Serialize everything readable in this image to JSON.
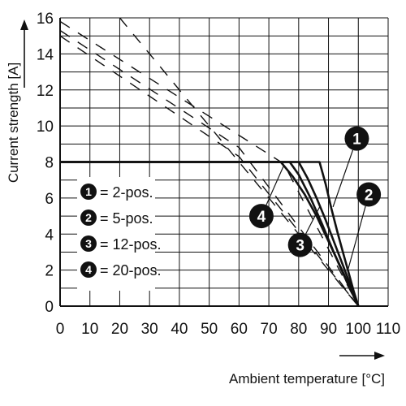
{
  "chart_data": {
    "type": "line",
    "ylabel": "Current strength [A]",
    "xlabel": "Ambient temperature [°C]",
    "xlim": [
      0,
      110
    ],
    "ylim": [
      0,
      16
    ],
    "xticks": [
      0,
      10,
      20,
      30,
      40,
      50,
      60,
      70,
      80,
      90,
      100,
      110
    ],
    "yticks": [
      0,
      2,
      4,
      6,
      8,
      10,
      12,
      14,
      16
    ],
    "grid": true,
    "legend": {
      "placement": "left",
      "items": [
        {
          "marker": "1",
          "label": "= 2-pos."
        },
        {
          "marker": "2",
          "label": "= 5-pos."
        },
        {
          "marker": "3",
          "label": "= 12-pos."
        },
        {
          "marker": "4",
          "label": "= 20-pos."
        }
      ]
    },
    "series": [
      {
        "marker": "1",
        "style": "solid",
        "x": [
          0,
          87,
          89,
          91,
          93,
          95,
          97,
          98.5,
          100
        ],
        "y": [
          8,
          8,
          6.8,
          5.4,
          4.1,
          2.9,
          1.7,
          0.8,
          0
        ]
      },
      {
        "marker": "2",
        "style": "solid",
        "x": [
          0,
          80,
          83,
          86,
          89,
          92,
          95,
          98,
          100
        ],
        "y": [
          8,
          8,
          7.1,
          6.0,
          4.8,
          3.5,
          2.2,
          0.9,
          0
        ]
      },
      {
        "marker": "3",
        "style": "solid",
        "x": [
          0,
          77,
          80,
          84,
          88,
          92,
          96,
          100
        ],
        "y": [
          8,
          8,
          7.3,
          6.0,
          4.5,
          2.9,
          1.4,
          0
        ]
      },
      {
        "marker": "4",
        "style": "solid",
        "x": [
          0,
          74,
          78,
          82,
          86,
          90,
          94,
          97,
          100
        ],
        "y": [
          8,
          8,
          7.2,
          6.2,
          5.0,
          3.6,
          2.2,
          1.1,
          0
        ]
      },
      {
        "marker": "1",
        "style": "dashed",
        "x": [
          20,
          100
        ],
        "y": [
          16,
          0
        ]
      },
      {
        "marker": "2",
        "style": "dashed",
        "x": [
          0,
          75,
          100
        ],
        "y": [
          15.8,
          7.9,
          0
        ]
      },
      {
        "marker": "3",
        "style": "dashed",
        "x": [
          0,
          60,
          100
        ],
        "y": [
          15.3,
          8.8,
          0
        ]
      },
      {
        "marker": "4",
        "style": "dashed",
        "x": [
          0,
          60,
          100
        ],
        "y": [
          15.0,
          8.3,
          0
        ]
      }
    ],
    "callouts": [
      {
        "marker": "1",
        "x": 99.5,
        "y": 9.3,
        "target_x": 91.5,
        "target_y": 5.5
      },
      {
        "marker": "2",
        "x": 103.5,
        "y": 6.2,
        "target_x": 96.5,
        "target_y": 2.0
      },
      {
        "marker": "3",
        "x": 80.5,
        "y": 3.4,
        "target_x": 87,
        "target_y": 5.5
      },
      {
        "marker": "4",
        "x": 67.5,
        "y": 5.0,
        "target_x": 75,
        "target_y": 7.8
      }
    ]
  }
}
